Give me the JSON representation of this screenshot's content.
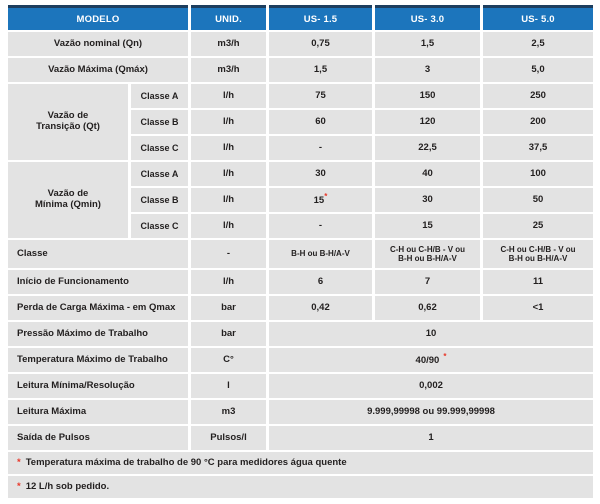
{
  "colors": {
    "header_blue": "#1c75bc",
    "header_top_border": "#1d3e5e",
    "cell_gray": "#e3e3e3",
    "accent_red": "#e8392b",
    "text": "#221f1f"
  },
  "header": {
    "modelo": "MODELO",
    "unid": "UNID.",
    "us15": "US- 1.5",
    "us30": "US- 3.0",
    "us50": "US- 5.0"
  },
  "rows": {
    "qn": {
      "label": "Vazão nominal (Qn)",
      "unit": "m3/h",
      "us15": "0,75",
      "us30": "1,5",
      "us50": "2,5"
    },
    "qmax": {
      "label": "Vazão Máxima (Qmáx)",
      "unit": "m3/h",
      "us15": "1,5",
      "us30": "3",
      "us50": "5,0"
    },
    "qt": {
      "label_line1": "Vazão de",
      "label_line2": "Transição (Qt)",
      "classe_a": {
        "label": "Classe A",
        "unit": "l/h",
        "us15": "75",
        "us30": "150",
        "us50": "250"
      },
      "classe_b": {
        "label": "Classe B",
        "unit": "l/h",
        "us15": "60",
        "us30": "120",
        "us50": "200"
      },
      "classe_c": {
        "label": "Classe C",
        "unit": "l/h",
        "us15": "-",
        "us30": "22,5",
        "us50": "37,5"
      }
    },
    "qmin": {
      "label_line1": "Vazão de",
      "label_line2": "Mínima (Qmin)",
      "classe_a": {
        "label": "Classe A",
        "unit": "l/h",
        "us15": "30",
        "us30": "40",
        "us50": "100"
      },
      "classe_b": {
        "label": "Classe B",
        "unit": "l/h",
        "us15": "15",
        "us15_note": "*",
        "us30": "30",
        "us50": "50"
      },
      "classe_c": {
        "label": "Classe C",
        "unit": "l/h",
        "us15": "-",
        "us30": "15",
        "us50": "25"
      }
    },
    "classe": {
      "label": "Classe",
      "unit": "-",
      "us15": "B-H ou B-H/A-V",
      "us30_line1": "C-H ou C-H/B - V ou",
      "us30_line2": "B-H ou B-H/A-V",
      "us50_line1": "C-H ou C-H/B - V ou",
      "us50_line2": "B-H ou B-H/A-V"
    },
    "inicio": {
      "label": "Início de Funcionamento",
      "unit": "l/h",
      "us15": "6",
      "us30": "7",
      "us50": "11"
    },
    "perda": {
      "label": "Perda de Carga Máxima - em Qmax",
      "unit": "bar",
      "us15": "0,42",
      "us30": "0,62",
      "us50": "<1"
    },
    "pressao": {
      "label": "Pressão Máximo de Trabalho",
      "unit": "bar",
      "value": "10"
    },
    "temperatura": {
      "label": "Temperatura Máximo de Trabalho",
      "unit": "C°",
      "value": "40/90",
      "note": "*"
    },
    "leitura_min": {
      "label": "Leitura Mínima/Resolução",
      "unit": "l",
      "value": "0,002"
    },
    "leitura_max": {
      "label": "Leitura Máxima",
      "unit": "m3",
      "value": "9.999,99998 ou 99.999,99998"
    },
    "pulsos": {
      "label": "Saída de Pulsos",
      "unit": "Pulsos/l",
      "value": "1"
    }
  },
  "footnotes": {
    "note1": {
      "marker": "*",
      "text": "Temperatura máxima de trabalho de 90 °C para medidores água quente"
    },
    "note2": {
      "marker": "*",
      "text": "12 L/h sob pedido."
    }
  }
}
